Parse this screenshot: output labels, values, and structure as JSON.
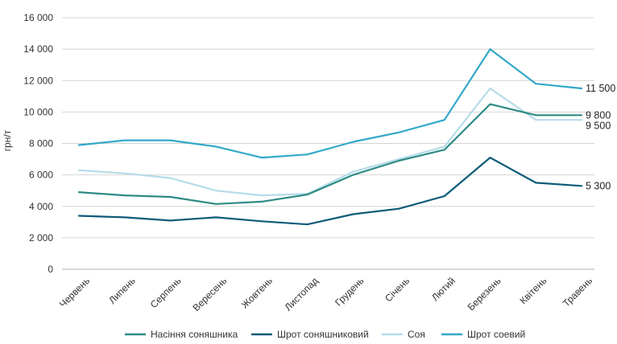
{
  "chart_data": {
    "type": "line",
    "ylabel": "грн/т",
    "xlabel": "",
    "ylim": [
      0,
      16000
    ],
    "yticks": [
      0,
      2000,
      4000,
      6000,
      8000,
      10000,
      12000,
      14000,
      16000
    ],
    "ytick_labels": [
      "0",
      "2 000",
      "4 000",
      "6 000",
      "8 000",
      "10 000",
      "12 000",
      "14 000",
      "16 000"
    ],
    "grid": "horizontal",
    "legend_position": "bottom",
    "categories": [
      "Червень",
      "Липень",
      "Серпень",
      "Вересень",
      "Жовтень",
      "Листопад",
      "Грудень",
      "Січень",
      "Лютий",
      "Березень",
      "Квітень",
      "Травень"
    ],
    "series": [
      {
        "name": "Насіння соняшника",
        "color": "#2e8b84",
        "values": [
          4900,
          4700,
          4600,
          4150,
          4300,
          4750,
          6000,
          6900,
          7600,
          10500,
          9800,
          9800
        ],
        "end_label": "9 800"
      },
      {
        "name": "Шрот соняшниковий",
        "color": "#0d5b78",
        "values": [
          3400,
          3300,
          3100,
          3300,
          3050,
          2850,
          3500,
          3850,
          4650,
          7100,
          5500,
          5300
        ],
        "end_label": "5 300"
      },
      {
        "name": "Соя",
        "color": "#b5dce8",
        "values": [
          6300,
          6100,
          5800,
          5000,
          4700,
          4800,
          6200,
          7000,
          7800,
          11500,
          9500,
          9500
        ],
        "end_label": "9 500"
      },
      {
        "name": "Шрот соевий",
        "color": "#33a8c9",
        "values": [
          7900,
          8200,
          8200,
          7800,
          7100,
          7300,
          8100,
          8700,
          9500,
          14000,
          11800,
          11500
        ],
        "end_label": "11 500"
      }
    ]
  }
}
